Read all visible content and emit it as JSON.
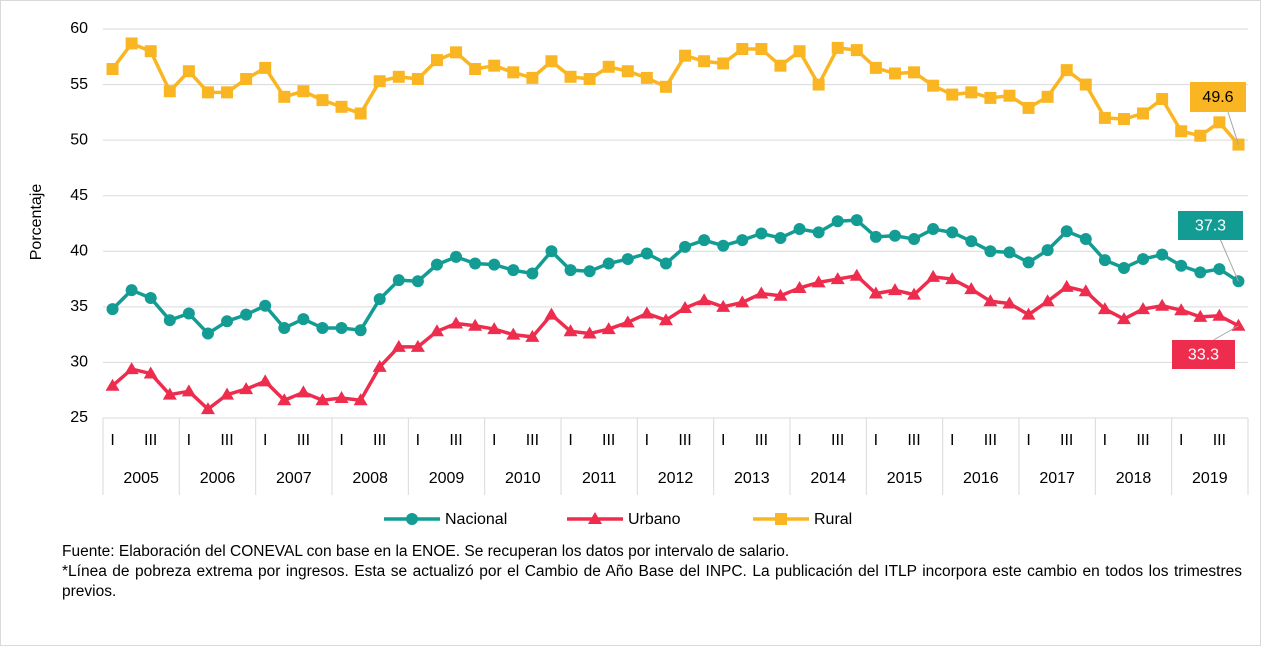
{
  "chart_data": {
    "type": "line",
    "y_label": "Porcentaje",
    "categories": [
      "I",
      null,
      "III",
      null,
      "I",
      null,
      "III",
      null,
      "I",
      null,
      "III",
      null,
      "I",
      null,
      "III",
      null,
      "I",
      null,
      "III",
      null,
      "I",
      null,
      "III",
      null,
      "I",
      null,
      "III",
      null,
      "I",
      null,
      "III",
      null,
      "I",
      null,
      "III",
      null,
      "I",
      null,
      "III",
      null,
      "I",
      null,
      "III",
      null,
      "I",
      null,
      "III",
      null,
      "I",
      null,
      "III",
      null,
      "I",
      null,
      "III",
      null,
      "I",
      null,
      "III",
      null
    ],
    "groups": [
      "2005",
      "2006",
      "2007",
      "2008",
      "2009",
      "2010",
      "2011",
      "2012",
      "2013",
      "2014",
      "2015",
      "2016",
      "2017",
      "2018",
      "2019"
    ],
    "series": [
      {
        "name": "Nacional",
        "color": "#139c93",
        "marker": "circle",
        "values": [
          34.8,
          36.5,
          35.8,
          33.8,
          34.4,
          32.6,
          33.7,
          34.3,
          35.1,
          33.1,
          33.9,
          33.1,
          33.1,
          32.9,
          35.7,
          37.4,
          37.3,
          38.8,
          39.5,
          38.9,
          38.8,
          38.3,
          38.0,
          40.0,
          38.3,
          38.2,
          38.9,
          39.3,
          39.8,
          38.9,
          40.4,
          41.0,
          40.5,
          41.0,
          41.6,
          41.2,
          42.0,
          41.7,
          42.7,
          42.8,
          41.3,
          41.4,
          41.1,
          42.0,
          41.7,
          40.9,
          40.0,
          39.9,
          39.0,
          40.1,
          41.8,
          41.1,
          39.2,
          38.5,
          39.3,
          39.7,
          38.7,
          38.1,
          38.4,
          37.3
        ]
      },
      {
        "name": "Urbano",
        "color": "#ee2d4e",
        "marker": "triangle",
        "values": [
          27.9,
          29.4,
          29.0,
          27.1,
          27.4,
          25.8,
          27.1,
          27.6,
          28.3,
          26.6,
          27.3,
          26.6,
          26.8,
          26.6,
          29.6,
          31.4,
          31.4,
          32.8,
          33.5,
          33.3,
          33.0,
          32.5,
          32.3,
          34.3,
          32.8,
          32.6,
          33.0,
          33.6,
          34.4,
          33.8,
          34.9,
          35.6,
          35.0,
          35.4,
          36.2,
          36.0,
          36.7,
          37.2,
          37.5,
          37.8,
          36.2,
          36.5,
          36.1,
          37.7,
          37.5,
          36.6,
          35.5,
          35.3,
          34.3,
          35.5,
          36.8,
          36.4,
          34.8,
          33.9,
          34.8,
          35.1,
          34.7,
          34.1,
          34.2,
          33.3
        ]
      },
      {
        "name": "Rural",
        "color": "#fab622",
        "marker": "square",
        "values": [
          56.4,
          58.7,
          58.0,
          54.4,
          56.2,
          54.3,
          54.3,
          55.5,
          56.5,
          53.9,
          54.4,
          53.6,
          53.0,
          52.4,
          55.3,
          55.7,
          55.5,
          57.2,
          57.9,
          56.4,
          56.7,
          56.1,
          55.6,
          57.1,
          55.7,
          55.5,
          56.6,
          56.2,
          55.6,
          54.8,
          57.6,
          57.1,
          56.9,
          58.2,
          58.2,
          56.7,
          58.0,
          55.0,
          58.3,
          58.1,
          56.5,
          56.0,
          56.1,
          54.9,
          54.1,
          54.3,
          53.8,
          54.0,
          52.9,
          53.9,
          56.3,
          55.0,
          52.0,
          51.9,
          52.4,
          53.7,
          50.8,
          50.4,
          51.6,
          49.6
        ]
      }
    ],
    "ylim": [
      25,
      60
    ],
    "yticks": [
      25,
      30,
      35,
      40,
      45,
      50,
      55,
      60
    ],
    "grid": true,
    "legend": "bottom",
    "source": "Fuente: Elaboración del CONEVAL con base en la ENOE. Se recuperan los datos por intervalo de salario.",
    "note": "*Línea de pobreza extrema por ingresos. Esta se actualizó por el Cambio de Año Base del INPC. La publicación del ITLP incorpora este cambio en todos los trimestres previos."
  }
}
